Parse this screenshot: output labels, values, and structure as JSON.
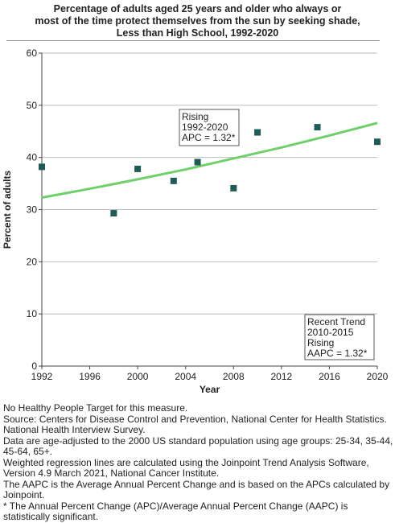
{
  "chart_data": {
    "type": "scatter",
    "title_lines": [
      "Percentage of adults aged 25 years and older who always or",
      "most of the time protect themselves from the sun by seeking shade,",
      "Less than High School,  1992-2020"
    ],
    "xlabel": "Year",
    "ylabel": "Percent of adults",
    "xlim": [
      1992,
      2020
    ],
    "ylim": [
      0,
      60
    ],
    "x_ticks": [
      1992,
      1996,
      2000,
      2004,
      2008,
      2012,
      2016,
      2020
    ],
    "y_ticks": [
      0,
      10,
      20,
      30,
      40,
      50,
      60
    ],
    "grid": "horizontal",
    "points": [
      {
        "x": 1992,
        "y": 38.2
      },
      {
        "x": 1998,
        "y": 29.3
      },
      {
        "x": 2000,
        "y": 37.8
      },
      {
        "x": 2003,
        "y": 35.5
      },
      {
        "x": 2005,
        "y": 39.1
      },
      {
        "x": 2008,
        "y": 34.1
      },
      {
        "x": 2010,
        "y": 44.8
      },
      {
        "x": 2015,
        "y": 45.8
      },
      {
        "x": 2020,
        "y": 43.0
      }
    ],
    "trend": {
      "x": [
        1992,
        1996,
        2000,
        2004,
        2008,
        2012,
        2016,
        2020
      ],
      "y": [
        32.3,
        34.0,
        35.8,
        37.7,
        39.8,
        41.9,
        44.2,
        46.6
      ]
    },
    "colors": {
      "points": "#1f5c58",
      "trend": "#6fcf6a",
      "grid": "#bbbbbb"
    },
    "annotations": [
      {
        "lines": [
          "Rising",
          "1992-2020",
          "APC =  1.32*"
        ]
      },
      {
        "lines": [
          "Recent Trend",
          "2010-2015",
          "Rising",
          "AAPC =  1.32*"
        ]
      }
    ]
  },
  "footnotes": [
    "No Healthy People Target for this measure.",
    "Source: Centers for Disease Control and Prevention, National Center for Health Statistics. National Health Interview Survey.",
    "Data are age-adjusted to the 2000 US standard population using age groups: 25-34, 35-44, 45-64, 65+.",
    "Weighted regression lines are calculated using the Joinpoint Trend Analysis Software, Version 4.9 March 2021, National Cancer Institute.",
    "The AAPC is the Average Annual Percent Change and is based on the APCs calculated by Joinpoint.",
    "* The Annual Percent Change (APC)/Average Annual Percent Change (AAPC) is statistically significant."
  ]
}
